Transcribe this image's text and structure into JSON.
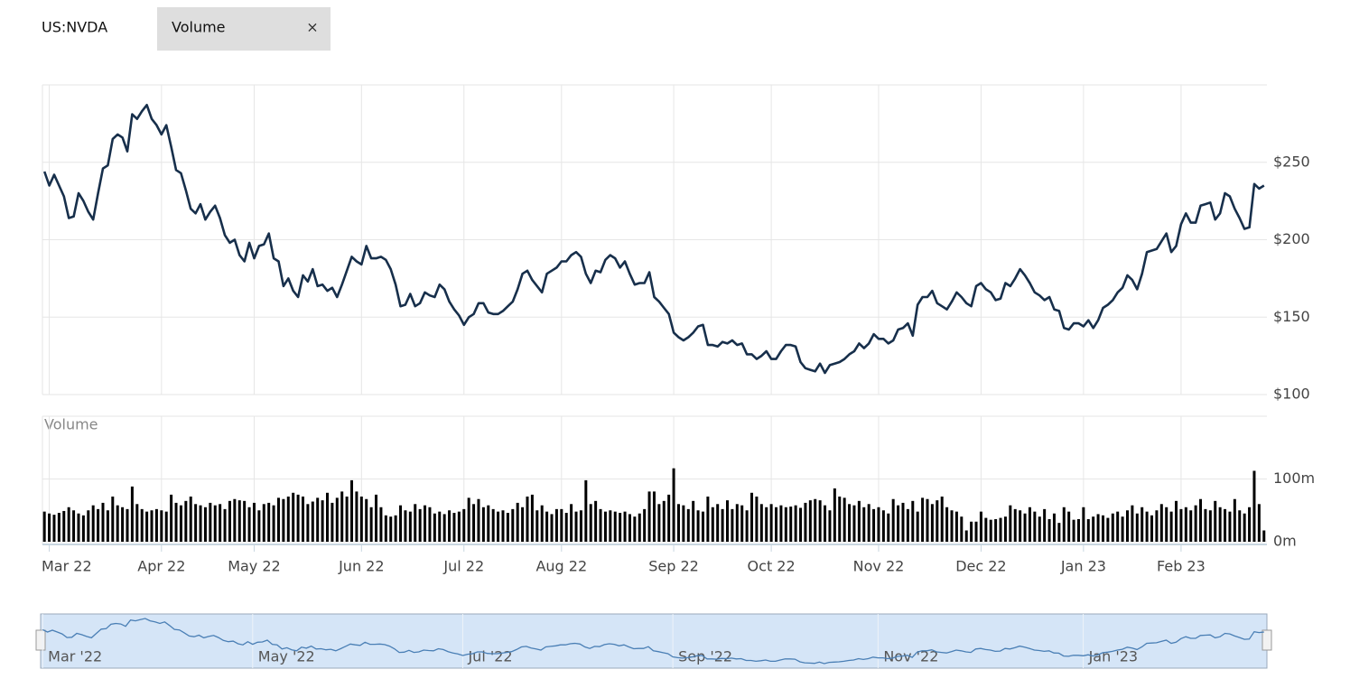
{
  "header": {
    "symbol": "US:NVDA",
    "tab": "Volume",
    "close": "×"
  },
  "chart_data": [
    {
      "type": "line",
      "color": "#172f4b",
      "grid": true,
      "xlim": [
        -0.4,
        250.6
      ],
      "ylim": [
        100,
        300
      ],
      "yticks": [
        {
          "value": 100,
          "label": "$100"
        },
        {
          "value": 150,
          "label": "$150"
        },
        {
          "value": 200,
          "label": "$200"
        },
        {
          "value": 250,
          "label": "$250"
        }
      ],
      "values": [
        244,
        235,
        242,
        235,
        228,
        214,
        215,
        230,
        225,
        218,
        213,
        230,
        246,
        248,
        265,
        268,
        266,
        257,
        281,
        278,
        283,
        287,
        278,
        274,
        268,
        274,
        260,
        245,
        243,
        232,
        220,
        217,
        223,
        213,
        218,
        222,
        214,
        203,
        198,
        200,
        190,
        186,
        198,
        188,
        196,
        197,
        204,
        188,
        186,
        170,
        175,
        167,
        163,
        177,
        173,
        181,
        170,
        171,
        167,
        169,
        163,
        171,
        180,
        189,
        186,
        184,
        196,
        188,
        188,
        189,
        187,
        181,
        171,
        157,
        158,
        165,
        157,
        159,
        166,
        164,
        163,
        171,
        168,
        160,
        155,
        151,
        145,
        150,
        152,
        159,
        159,
        153,
        152,
        152,
        154,
        157,
        160,
        168,
        178,
        180,
        174,
        170,
        166,
        178,
        180,
        182,
        186,
        186,
        190,
        192,
        189,
        178,
        172,
        180,
        179,
        187,
        190,
        188,
        182,
        186,
        178,
        171,
        172,
        172,
        179,
        163,
        160,
        156,
        152,
        140,
        137,
        135,
        137,
        140,
        144,
        145,
        132,
        132,
        131,
        134,
        133,
        135,
        132,
        133,
        126,
        126,
        123,
        125,
        128,
        123,
        123,
        128,
        132,
        132,
        131,
        121,
        117,
        116,
        115,
        120,
        114,
        119,
        120,
        121,
        123,
        126,
        128,
        133,
        130,
        133,
        139,
        136,
        136,
        133,
        135,
        142,
        143,
        146,
        138,
        158,
        163,
        163,
        167,
        159,
        157,
        155,
        160,
        166,
        163,
        159,
        157,
        170,
        172,
        168,
        166,
        161,
        162,
        172,
        170,
        175,
        181,
        177,
        172,
        166,
        164,
        161,
        163,
        155,
        154,
        143,
        142,
        146,
        146,
        144,
        148,
        143,
        148,
        156,
        158,
        161,
        166,
        169,
        177,
        174,
        168,
        178,
        192,
        193,
        194,
        199,
        204,
        192,
        196,
        210,
        217,
        211,
        211,
        222,
        223,
        224,
        213,
        217,
        230,
        228,
        220,
        214,
        207,
        208,
        236,
        233,
        235
      ]
    },
    {
      "type": "bar",
      "title": "Volume",
      "color": "#000000",
      "grid": true,
      "xlim": [
        -0.4,
        250.6
      ],
      "ylim": [
        0,
        200
      ],
      "yticks": [
        {
          "value": 0,
          "label": "0m"
        },
        {
          "value": 100,
          "label": "100m"
        }
      ],
      "xticks": [
        {
          "value": 1,
          "label": "Mar 22"
        },
        {
          "value": 24,
          "label": "Apr 22"
        },
        {
          "value": 43,
          "label": "May 22"
        },
        {
          "value": 65,
          "label": "Jun 22"
        },
        {
          "value": 86,
          "label": "Jul 22"
        },
        {
          "value": 106,
          "label": "Aug 22"
        },
        {
          "value": 129,
          "label": "Sep 22"
        },
        {
          "value": 149,
          "label": "Oct 22"
        },
        {
          "value": 171,
          "label": "Nov 22"
        },
        {
          "value": 192,
          "label": "Dec 22"
        },
        {
          "value": 213,
          "label": "Jan 23"
        },
        {
          "value": 233,
          "label": "Feb 23"
        }
      ],
      "values": [
        48,
        45,
        43,
        46,
        49,
        55,
        50,
        45,
        42,
        50,
        58,
        52,
        62,
        50,
        72,
        58,
        55,
        52,
        88,
        60,
        52,
        48,
        50,
        52,
        50,
        48,
        75,
        62,
        58,
        65,
        72,
        60,
        58,
        55,
        62,
        58,
        60,
        52,
        65,
        68,
        66,
        65,
        55,
        62,
        50,
        60,
        62,
        58,
        70,
        68,
        72,
        78,
        75,
        72,
        60,
        64,
        70,
        66,
        78,
        62,
        70,
        80,
        72,
        98,
        80,
        72,
        68,
        55,
        75,
        55,
        42,
        40,
        42,
        58,
        50,
        48,
        60,
        52,
        58,
        55,
        45,
        48,
        44,
        50,
        46,
        48,
        52,
        70,
        60,
        68,
        55,
        58,
        52,
        48,
        50,
        46,
        52,
        62,
        55,
        72,
        75,
        50,
        58,
        48,
        44,
        52,
        52,
        46,
        60,
        48,
        50,
        98,
        60,
        65,
        52,
        48,
        50,
        48,
        46,
        48,
        44,
        40,
        45,
        52,
        80,
        80,
        60,
        65,
        75,
        117,
        60,
        58,
        52,
        65,
        50,
        48,
        72,
        55,
        60,
        52,
        66,
        52,
        60,
        58,
        50,
        78,
        72,
        60,
        55,
        60,
        55,
        58,
        55,
        56,
        58,
        54,
        62,
        66,
        68,
        66,
        58,
        50,
        85,
        72,
        70,
        60,
        58,
        65,
        55,
        60,
        52,
        55,
        50,
        45,
        68,
        58,
        62,
        52,
        65,
        48,
        70,
        68,
        60,
        66,
        72,
        55,
        50,
        48,
        40,
        18,
        32,
        32,
        48,
        38,
        35,
        36,
        38,
        40,
        58,
        52,
        50,
        45,
        55,
        48,
        40,
        52,
        36,
        45,
        30,
        55,
        48,
        35,
        36,
        55,
        36,
        40,
        44,
        42,
        38,
        45,
        48,
        40,
        50,
        58,
        45,
        55,
        48,
        42,
        50,
        60,
        55,
        48,
        65,
        52,
        55,
        50,
        58,
        68,
        52,
        50,
        65,
        55,
        52,
        48,
        68,
        50,
        45,
        55,
        113,
        60,
        18
      ]
    }
  ],
  "navigator": {
    "color": "#4a7fb5",
    "xlim": [
      -0.4,
      250.6
    ],
    "xticks": [
      {
        "value": 0,
        "label": "Mar '22"
      },
      {
        "value": 43,
        "label": "May '22"
      },
      {
        "value": 86,
        "label": "Jul '22"
      },
      {
        "value": 129,
        "label": "Sep '22"
      },
      {
        "value": 171,
        "label": "Nov '22"
      },
      {
        "value": 213,
        "label": "Jan '23"
      }
    ]
  }
}
